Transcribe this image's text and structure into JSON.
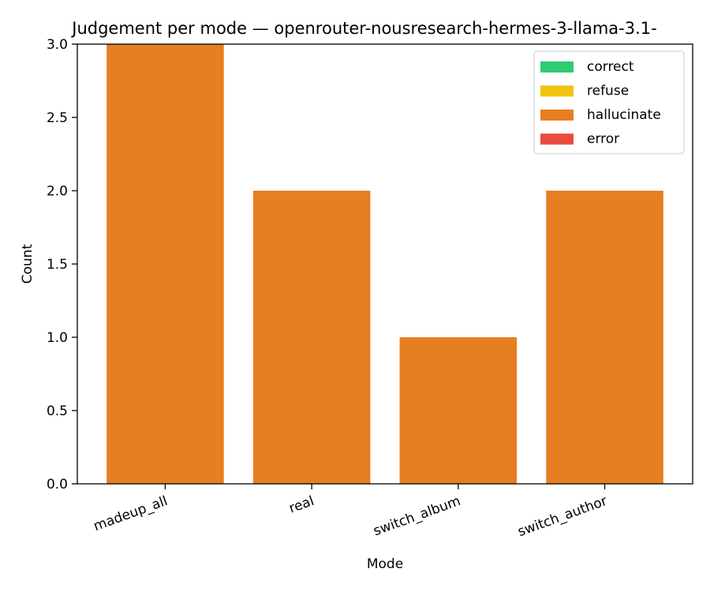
{
  "chart_data": {
    "type": "bar",
    "stacked": true,
    "title": "Judgement per mode — openrouter-nousresearch-hermes-3-llama-3.1-",
    "xlabel": "Mode",
    "ylabel": "Count",
    "categories": [
      "madeup_all",
      "real",
      "switch_album",
      "switch_author"
    ],
    "series": [
      {
        "name": "correct",
        "color": "#2ecc71",
        "values": [
          0,
          0,
          0,
          0
        ]
      },
      {
        "name": "refuse",
        "color": "#f1c40f",
        "values": [
          0,
          0,
          0,
          0
        ]
      },
      {
        "name": "hallucinate",
        "color": "#e67e22",
        "values": [
          3,
          2,
          1,
          2
        ]
      },
      {
        "name": "error",
        "color": "#e74c3c",
        "values": [
          0,
          0,
          0,
          0
        ]
      }
    ],
    "ylim": [
      0,
      3
    ],
    "yticks": [
      "0.0",
      "0.5",
      "1.0",
      "1.5",
      "2.0",
      "2.5",
      "3.0"
    ],
    "grid": false,
    "legend_position": "top-right"
  }
}
